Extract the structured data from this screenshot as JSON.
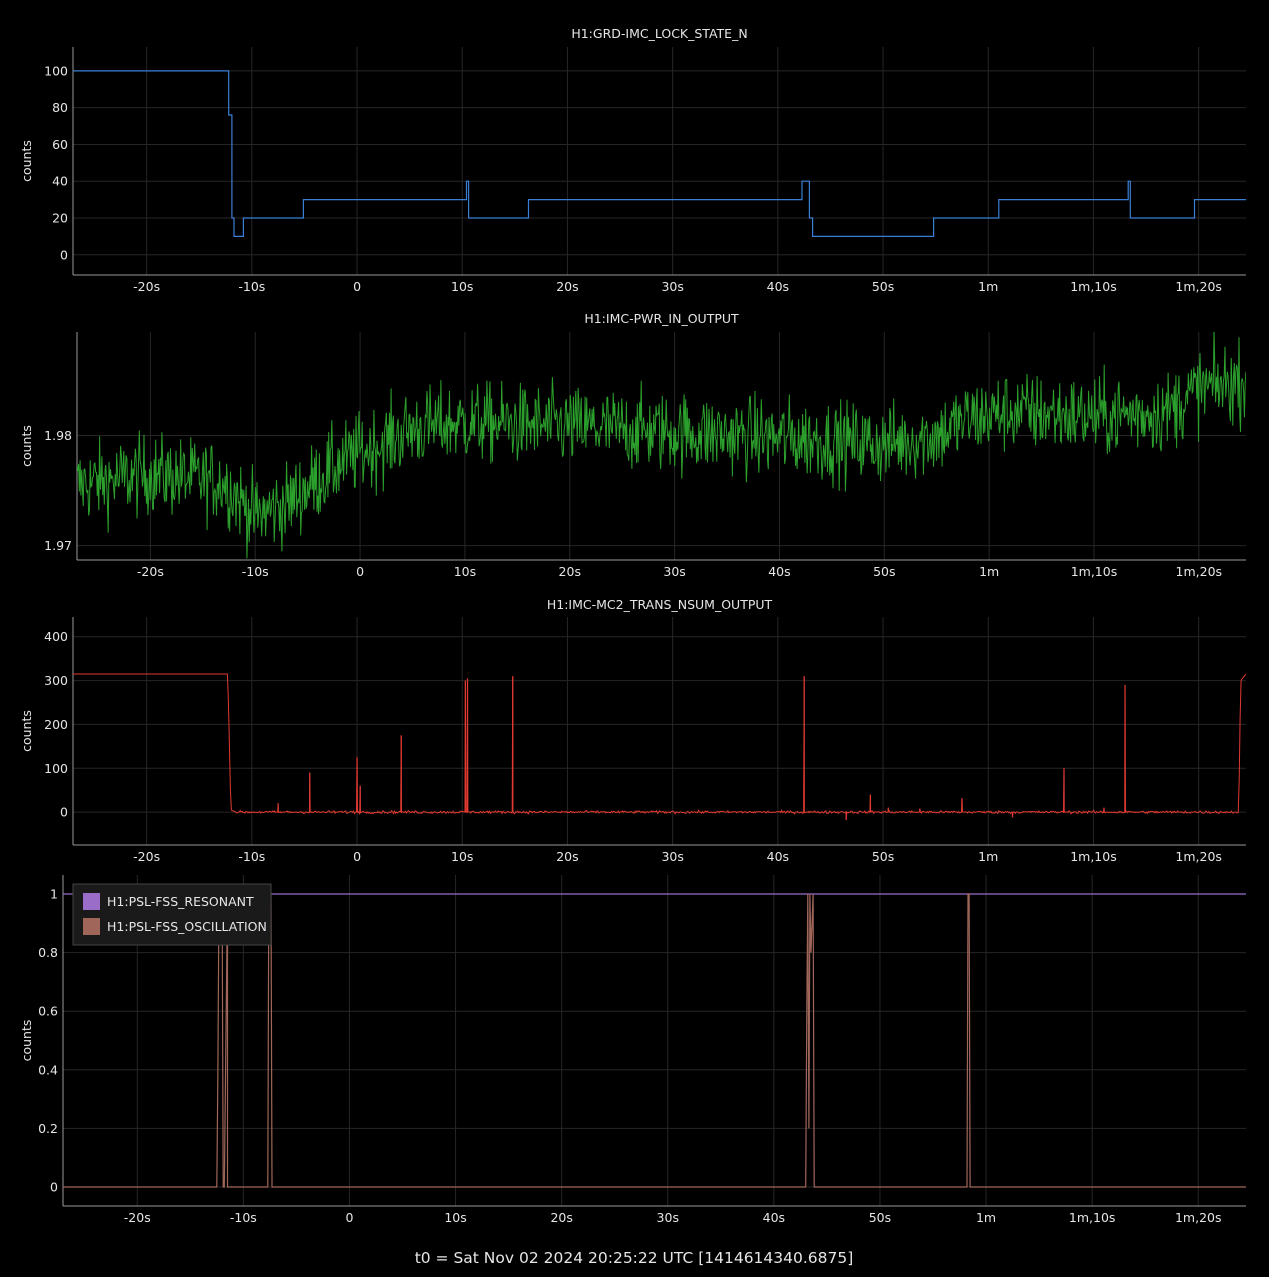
{
  "footer": "t0 = Sat Nov 02 2024 20:25:22 UTC [1414614340.6875]",
  "x_ticks": {
    "values": [
      -20,
      -10,
      0,
      10,
      20,
      30,
      40,
      50,
      60,
      70,
      80
    ],
    "labels": [
      "-20s",
      "-10s",
      "0",
      "10s",
      "20s",
      "30s",
      "40s",
      "50s",
      "1m",
      "1m,10s",
      "1m,20s"
    ],
    "range": [
      -27,
      84.5
    ]
  },
  "chart_data": [
    {
      "type": "line",
      "title": "H1:GRD-IMC_LOCK_STATE_N",
      "ylabel": "counts",
      "ylim": [
        -11,
        113
      ],
      "yticks": [
        0,
        20,
        40,
        60,
        80,
        100
      ],
      "ytick_labels": [
        "0",
        "20",
        "40",
        "60",
        "80",
        "100"
      ],
      "color": "#3a7fd5",
      "series": [
        {
          "x": [
            -27,
            -12.2,
            -12.2,
            -11.9,
            -11.9,
            -11.7,
            -11.7,
            -11.4,
            -11.4,
            -10.8,
            -10.8,
            -5.1,
            -5.1,
            10.4,
            10.4,
            10.6,
            10.6,
            16.3,
            16.3,
            42.3,
            42.3,
            43,
            43,
            43.3,
            43.3,
            54.8,
            54.8,
            61,
            61,
            73.3,
            73.3,
            73.5,
            73.5,
            79.6,
            79.6,
            84.5
          ],
          "y": [
            100,
            100,
            76,
            76,
            20,
            20,
            10,
            10,
            10,
            10,
            20,
            20,
            30,
            30,
            40,
            40,
            20,
            20,
            30,
            30,
            40,
            40,
            20,
            20,
            10,
            10,
            20,
            20,
            30,
            30,
            40,
            40,
            20,
            20,
            30,
            30
          ]
        }
      ]
    },
    {
      "type": "line",
      "title": "H1:IMC-PWR_IN_OUTPUT",
      "ylabel": "counts",
      "ylim": [
        1.9687,
        1.9894
      ],
      "yticks": [
        1.97,
        1.98
      ],
      "ytick_labels": [
        "1.97",
        "1.98"
      ],
      "color": "#2ca02c",
      "noise_profile": {
        "x": [
          -27,
          -20,
          -13,
          -10,
          -7,
          -3,
          0,
          2,
          5,
          10,
          20,
          30,
          40,
          50,
          55,
          58,
          62,
          70,
          77,
          80,
          84.5
        ],
        "mean": [
          1.9755,
          1.9765,
          1.9758,
          1.9727,
          1.9738,
          1.9768,
          1.9785,
          1.9792,
          1.9806,
          1.9812,
          1.9808,
          1.9803,
          1.9798,
          1.9792,
          1.98,
          1.9815,
          1.9822,
          1.9817,
          1.9822,
          1.9842,
          1.985
        ],
        "amplitude": 0.002
      }
    },
    {
      "type": "line",
      "title": "H1:IMC-MC2_TRANS_NSUM_OUTPUT",
      "ylabel": "counts",
      "ylim": [
        -75,
        445
      ],
      "yticks": [
        0,
        100,
        200,
        300,
        400
      ],
      "ytick_labels": [
        "0",
        "100",
        "200",
        "300",
        "400"
      ],
      "color": "#e03a32",
      "baseline": {
        "x": [
          -27,
          -12.3,
          -12.2,
          -12,
          -11.5,
          83.8,
          84.0,
          84.5
        ],
        "y": [
          315,
          315,
          230,
          5,
          0,
          0,
          300,
          315
        ]
      },
      "spikes": [
        {
          "x": -7.5,
          "y": 20
        },
        {
          "x": -4.5,
          "y": 90
        },
        {
          "x": 0,
          "y": 125
        },
        {
          "x": 0.3,
          "y": 60
        },
        {
          "x": 4.2,
          "y": 175
        },
        {
          "x": 10.3,
          "y": 300
        },
        {
          "x": 10.5,
          "y": 305
        },
        {
          "x": 14.8,
          "y": 310
        },
        {
          "x": 42.5,
          "y": 310
        },
        {
          "x": 46.5,
          "y": -18
        },
        {
          "x": 48.8,
          "y": 40
        },
        {
          "x": 50.5,
          "y": 10
        },
        {
          "x": 53.5,
          "y": 8
        },
        {
          "x": 57.5,
          "y": 32
        },
        {
          "x": 62.3,
          "y": -12
        },
        {
          "x": 67.2,
          "y": 100
        },
        {
          "x": 71.0,
          "y": 10
        },
        {
          "x": 73.0,
          "y": 290
        }
      ]
    },
    {
      "type": "line",
      "ylabel": "counts",
      "ylim": [
        -0.065,
        1.065
      ],
      "yticks": [
        0,
        0.2,
        0.4,
        0.6,
        0.8,
        1
      ],
      "ytick_labels": [
        "0",
        "0.2",
        "0.4",
        "0.6",
        "0.8",
        "1"
      ],
      "legend_position": "top-left",
      "series": [
        {
          "name": "H1:PSL-FSS_RESONANT",
          "color": "#9a6dc9",
          "x": [
            -27,
            84.5
          ],
          "y": [
            1,
            1
          ]
        },
        {
          "name": "H1:PSL-FSS_OSCILLATION",
          "color": "#a0665a",
          "x": [
            -27,
            -12.5,
            -12.4,
            -12.3,
            -12.0,
            -11.9,
            -11.8,
            -11.5,
            -11.5,
            -7.7,
            -7.6,
            -7.4,
            -7.3,
            43.0,
            43.1,
            43.2,
            43.3,
            43.4,
            43.5,
            43.7,
            43.8,
            58.2,
            58.3,
            58.4,
            58.5,
            84.5
          ],
          "y": [
            0,
            0,
            0.4,
            1,
            1,
            0,
            0,
            1,
            0,
            0,
            1,
            1,
            0,
            0,
            0.6,
            1,
            0.2,
            1,
            0.8,
            1,
            0,
            0,
            1,
            1,
            0,
            0
          ]
        }
      ]
    }
  ]
}
